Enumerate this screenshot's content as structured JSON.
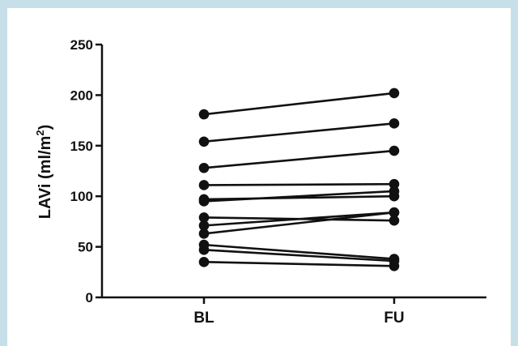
{
  "chart_data": {
    "type": "line",
    "categories": [
      "BL",
      "FU"
    ],
    "ylabel": "LAVi (ml/m2)",
    "ylabel_main": "LAVi (ml/m",
    "ylabel_sup": "2",
    "ylabel_close": ")",
    "ylim": [
      0,
      250
    ],
    "yticks": [
      0,
      50,
      100,
      150,
      200,
      250
    ],
    "ytick_labels": [
      "0",
      "50",
      "100",
      "150",
      "200",
      "250"
    ],
    "series": [
      {
        "values": [
          181,
          202
        ]
      },
      {
        "values": [
          154,
          172
        ]
      },
      {
        "values": [
          128,
          145
        ]
      },
      {
        "values": [
          111,
          112
        ]
      },
      {
        "values": [
          97,
          100
        ]
      },
      {
        "values": [
          95,
          105
        ]
      },
      {
        "values": [
          79,
          76
        ]
      },
      {
        "values": [
          71,
          84
        ]
      },
      {
        "values": [
          63,
          84
        ]
      },
      {
        "values": [
          52,
          38
        ]
      },
      {
        "values": [
          47,
          36
        ]
      },
      {
        "values": [
          35,
          31
        ]
      }
    ],
    "grid": false,
    "colors": {
      "line": "#111111",
      "marker": "#111111",
      "frame": "#c7dfe9"
    }
  }
}
